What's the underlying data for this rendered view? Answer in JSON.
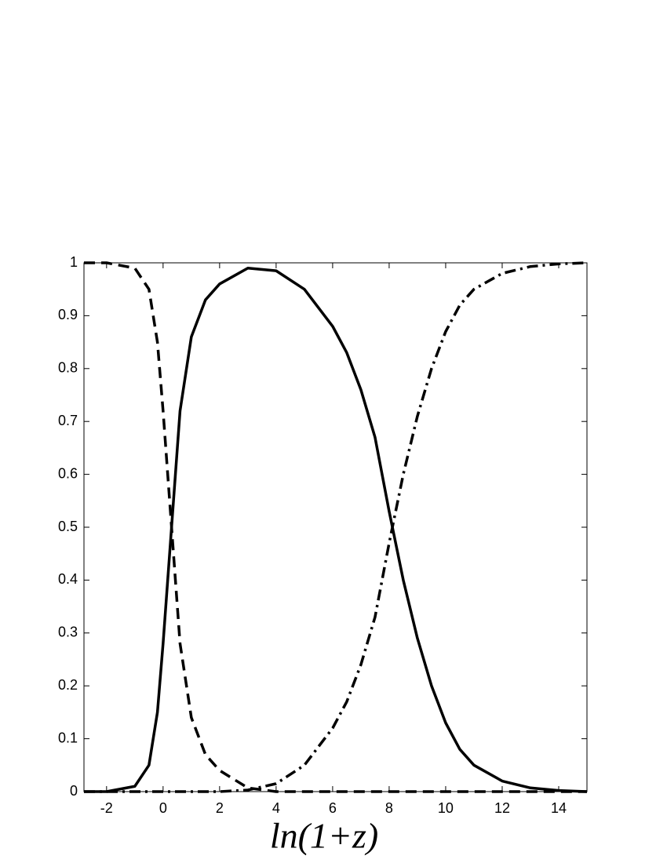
{
  "chart_data": {
    "type": "line",
    "x_label": "ln(1+z)",
    "x": [
      -2.8,
      -2,
      -1,
      -0.5,
      -0.2,
      0,
      0.3,
      0.6,
      1,
      1.5,
      2,
      3,
      4,
      5,
      6,
      6.5,
      7,
      7.5,
      8,
      8.5,
      9,
      9.5,
      10,
      10.5,
      11,
      12,
      13,
      14,
      15
    ],
    "series": [
      {
        "color": "#000000",
        "style": "solid",
        "values": [
          0,
          0,
          0.01,
          0.05,
          0.15,
          0.28,
          0.5,
          0.72,
          0.86,
          0.93,
          0.96,
          0.99,
          0.985,
          0.95,
          0.88,
          0.83,
          0.76,
          0.67,
          0.53,
          0.4,
          0.29,
          0.2,
          0.13,
          0.08,
          0.05,
          0.02,
          0.007,
          0.002,
          0
        ]
      },
      {
        "color": "#000000",
        "style": "dashed",
        "values": [
          1,
          1,
          0.99,
          0.95,
          0.85,
          0.72,
          0.5,
          0.28,
          0.14,
          0.07,
          0.04,
          0.007,
          0,
          0,
          0,
          0,
          0,
          0,
          0,
          0,
          0,
          0,
          0,
          0,
          0,
          0,
          0,
          0,
          0
        ]
      },
      {
        "color": "#000000",
        "style": "dashdot",
        "values": [
          0,
          0,
          0,
          0,
          0,
          0,
          0,
          0,
          0,
          0,
          0,
          0.003,
          0.015,
          0.05,
          0.12,
          0.17,
          0.24,
          0.33,
          0.47,
          0.6,
          0.71,
          0.8,
          0.87,
          0.92,
          0.95,
          0.98,
          0.993,
          0.998,
          1
        ]
      }
    ],
    "xlim": [
      -2.8,
      15
    ],
    "xticks": [
      -2,
      0,
      2,
      4,
      6,
      8,
      10,
      12,
      14
    ],
    "ylim": [
      0,
      1
    ],
    "yticks": [
      0,
      0.1,
      0.2,
      0.3,
      0.4,
      0.5,
      0.6,
      0.7,
      0.8,
      0.9,
      1
    ],
    "grid": false
  }
}
